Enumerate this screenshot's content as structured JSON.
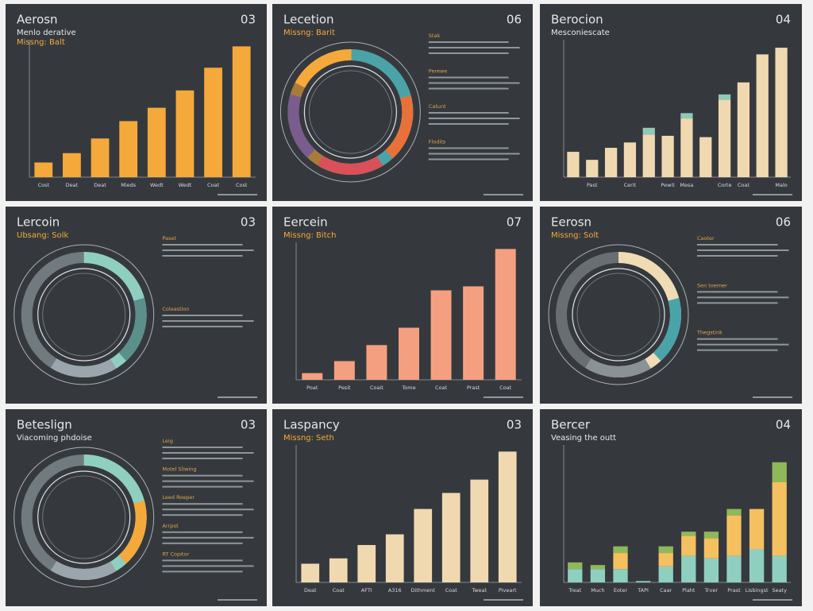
{
  "chart_data": [
    {
      "type": "bar",
      "title": "Aerosn",
      "number": "03",
      "subtitle": "Menlo derative",
      "tagline": "Missng: Balt",
      "subtitle_color": "#e8e8e8",
      "tagline_color": "#f5a93a",
      "categories": [
        "Cost",
        "Deat",
        "Deat",
        "Mieds",
        "Wedt",
        "Wedt",
        "Coat",
        "Cost"
      ],
      "values": [
        11,
        18,
        29,
        42,
        52,
        65,
        82,
        98
      ],
      "color": "#f5a93a",
      "ylim": [
        0,
        100
      ]
    },
    {
      "type": "ring",
      "title": "Lecetion",
      "number": "06",
      "subtitle": "Missng: Barit",
      "subtitle_color": "#f5a93a",
      "colors": [
        "#4aa3a8",
        "#e8713a",
        "#d9505a",
        "#7a5c8e",
        "#f5a93a"
      ],
      "notes": [
        "Stak",
        "Perewe",
        "Catunt",
        "Flodits"
      ]
    },
    {
      "type": "bar",
      "title": "Berocion",
      "number": "04",
      "subtitle": "Mesconiescate",
      "subtitle_color": "#e8e8e8",
      "categories": [
        null,
        "Past",
        null,
        "Cerit",
        null,
        "Pewit",
        "Mesa",
        null,
        "Corte",
        "Coat",
        null,
        "Malo"
      ],
      "ylim": [
        0,
        100
      ],
      "series": [
        {
          "color": "#f0d9b0",
          "values": [
            19,
            13,
            22,
            26,
            32,
            31,
            44,
            30,
            58,
            71,
            92,
            97
          ]
        },
        {
          "color": "#8fc9b8",
          "values": [
            0,
            0,
            0,
            0,
            5,
            0,
            4,
            0,
            4,
            0,
            0,
            0
          ]
        }
      ]
    },
    {
      "type": "ring",
      "title": "Lercoin",
      "number": "03",
      "subtitle": "Ubsang: Solk",
      "subtitle_color": "#f5a93a",
      "colors": [
        "#8fcfc0",
        "#5b8f8a",
        "#9aa6ab"
      ],
      "notes": [
        "Paset",
        "Coleastion"
      ]
    },
    {
      "type": "bar",
      "title": "Eercein",
      "number": "07",
      "subtitle": "Missng: Bitch",
      "subtitle_color": "#f5a93a",
      "categories": [
        "Poat",
        "Pesit",
        "Coait",
        "Tome",
        "Coat",
        "Prast",
        "Coat"
      ],
      "values": [
        5,
        14,
        26,
        39,
        67,
        70,
        98
      ],
      "color": "#f4a080",
      "ylim": [
        0,
        100
      ]
    },
    {
      "type": "ring",
      "title": "Eerosn",
      "number": "06",
      "subtitle": "Missng: Solt",
      "subtitle_color": "#f5a93a",
      "colors": [
        "#f0dcb4",
        "#4aa3a8",
        "#8a9296"
      ],
      "notes": [
        "Caoter",
        "Sen toemer",
        "Thegstink"
      ]
    },
    {
      "type": "ring",
      "title": "Beteslign",
      "number": "03",
      "subtitle": "Viacoming phdoise",
      "subtitle_color": "#e8e8e8",
      "colors": [
        "#8fcfc0",
        "#f5a93a",
        "#9aa6ab"
      ],
      "notes": [
        "Leig",
        "Motel Sliwing",
        "Leed Roeper",
        "Arrpot",
        "RT Copitor"
      ]
    },
    {
      "type": "bar",
      "title": "Laspancy",
      "number": "03",
      "subtitle": "Missng: Seth",
      "subtitle_color": "#f5a93a",
      "categories": [
        "Deat",
        "Coat",
        "AFTI",
        "A316",
        "Dithment",
        "Coat",
        "Tweat",
        "Piveart"
      ],
      "values": [
        14,
        18,
        28,
        36,
        55,
        67,
        77,
        98
      ],
      "color": "#f0d9b0",
      "ylim": [
        0,
        100
      ]
    },
    {
      "type": "bar",
      "title": "Bercer",
      "number": "04",
      "subtitle": "Veasing the outt",
      "subtitle_color": "#e8e8e8",
      "categories": [
        "Treat",
        "Much",
        "Eoter",
        "TAPI",
        "Caar",
        "Plaht",
        "Trver",
        "Prast",
        "Lisbingst",
        "Seaty"
      ],
      "ylim": [
        0,
        100
      ],
      "series": [
        {
          "color": "#8fcfc0",
          "values": [
            10,
            10,
            10,
            1,
            12,
            20,
            18,
            20,
            25,
            20
          ]
        },
        {
          "color": "#f5c060",
          "values": [
            0,
            0,
            12,
            0,
            10,
            15,
            15,
            30,
            30,
            55
          ]
        },
        {
          "color": "#8fb85a",
          "values": [
            5,
            3,
            5,
            0,
            5,
            3,
            5,
            5,
            0,
            15
          ]
        }
      ]
    }
  ]
}
